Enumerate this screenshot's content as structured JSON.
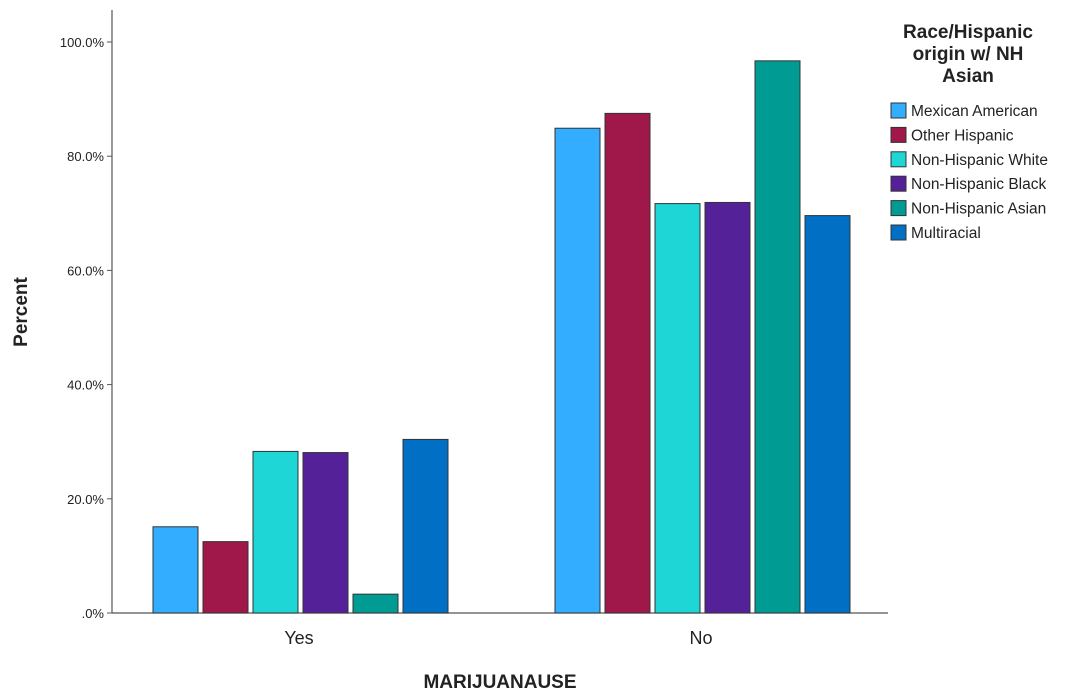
{
  "chart_data": {
    "type": "bar",
    "title": "",
    "xlabel": "MARIJUANAUSE",
    "ylabel": "Percent",
    "categories": [
      "Yes",
      "No"
    ],
    "ylim": [
      0,
      100
    ],
    "yticks": [
      0,
      20,
      40,
      60,
      80,
      100
    ],
    "ytick_labels": [
      ".0%",
      "20.0%",
      "40.0%",
      "60.0%",
      "80.0%",
      "100.0%"
    ],
    "grid": false,
    "legend": {
      "title_lines": [
        "Race/Hispanic",
        "origin w/ NH",
        "Asian"
      ],
      "placement": "right"
    },
    "series": [
      {
        "name": "Mexican American",
        "color": "#33adff",
        "values": [
          15.1,
          84.9
        ]
      },
      {
        "name": "Other Hispanic",
        "color": "#a0184a",
        "values": [
          12.5,
          87.5
        ]
      },
      {
        "name": "Non-Hispanic White",
        "color": "#1fd6d6",
        "values": [
          28.3,
          71.7
        ]
      },
      {
        "name": "Non-Hispanic Black",
        "color": "#552199",
        "values": [
          28.1,
          71.9
        ]
      },
      {
        "name": "Non-Hispanic Asian",
        "color": "#009c94",
        "values": [
          3.3,
          96.7
        ]
      },
      {
        "name": "Multiracial",
        "color": "#006fc4",
        "values": [
          30.4,
          69.6
        ]
      }
    ]
  }
}
